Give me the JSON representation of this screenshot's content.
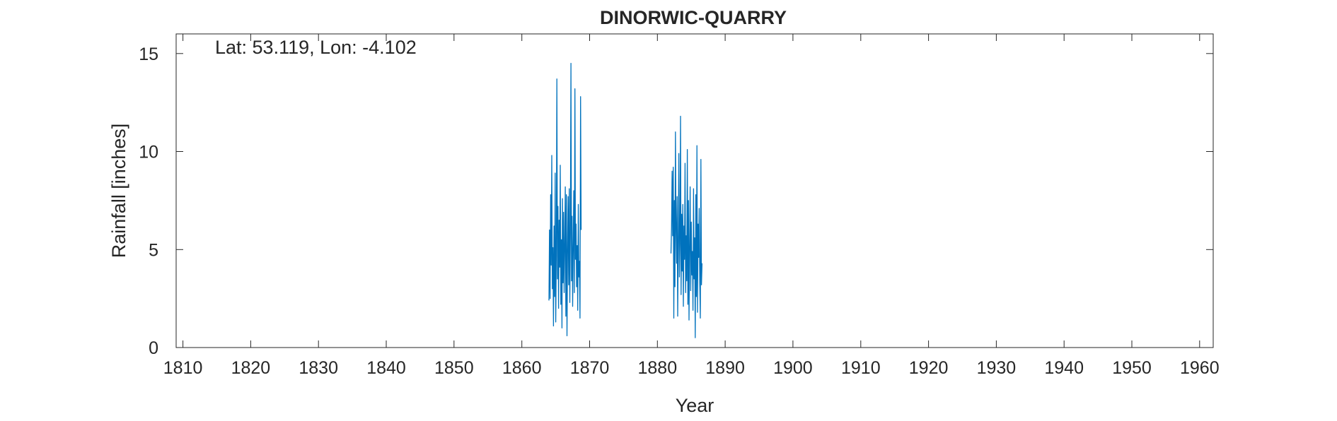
{
  "chart_data": {
    "type": "line",
    "title": "DINORWIC-QUARRY",
    "annotation": "Lat: 53.119, Lon: -4.102",
    "xlabel": "Year",
    "ylabel": "Rainfall [inches]",
    "xlim": [
      1809,
      1962
    ],
    "ylim": [
      0,
      16
    ],
    "xticks": [
      1810,
      1820,
      1830,
      1840,
      1850,
      1860,
      1870,
      1880,
      1890,
      1900,
      1910,
      1920,
      1930,
      1940,
      1950,
      1960
    ],
    "yticks": [
      0,
      5,
      10,
      15
    ],
    "grid": false,
    "line_color": "#0072BD",
    "series": [
      {
        "segments": [
          {
            "start": 1864.0,
            "step": 0.0833,
            "values": [
              2.4,
              6.0,
              2.5,
              7.8,
              4.2,
              9.8,
              3.0,
              5.1,
              1.1,
              6.2,
              2.6,
              8.9,
              1.3,
              4.7,
              13.7,
              3.5,
              7.2,
              2.0,
              6.5,
              4.1,
              9.3,
              2.2,
              5.5,
              1.0,
              7.6,
              3.3,
              6.9,
              2.8,
              5.2,
              8.2,
              1.6,
              7.8,
              0.6,
              4.9,
              7.7,
              3.2,
              8.1,
              2.3,
              5.8,
              14.5,
              3.4,
              6.7,
              2.1,
              5.1,
              8.0,
              2.8,
              13.2,
              4.5,
              6.3,
              3.1,
              5.2,
              1.9,
              7.3,
              3.6,
              4.4,
              1.5,
              12.8,
              6.0
            ]
          },
          {
            "start": 1882.0,
            "step": 0.0833,
            "values": [
              4.8,
              6.1,
              9.0,
              5.7,
              9.2,
              1.5,
              7.5,
              3.1,
              11.0,
              6.2,
              4.3,
              7.7,
              1.6,
              5.4,
              9.9,
              3.6,
              5.3,
              11.8,
              2.7,
              6.8,
              3.9,
              7.3,
              2.1,
              6.2,
              4.5,
              9.4,
              2.8,
              5.7,
              3.4,
              10.1,
              2.2,
              7.5,
              1.4,
              5.1,
              8.2,
              2.9,
              6.4,
              3.7,
              4.9,
              1.9,
              8.1,
              3.5,
              5.6,
              0.5,
              7.8,
              2.6,
              10.3,
              1.8,
              6.3,
              4.6,
              7.1,
              3.3,
              1.5,
              9.6,
              3.2,
              4.3
            ]
          }
        ]
      }
    ]
  }
}
